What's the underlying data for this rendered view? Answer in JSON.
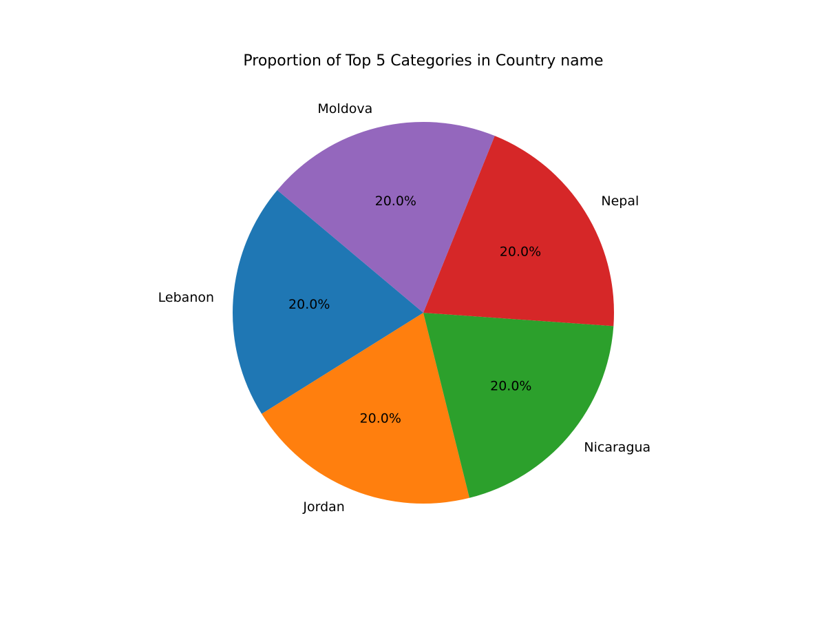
{
  "chart_data": {
    "type": "pie",
    "title": "Proportion of Top 5 Categories in Country name",
    "start_angle_deg": 140,
    "direction": "counterclockwise",
    "slices": [
      {
        "label": "Lebanon",
        "value": 20.0,
        "pct_label": "20.0%",
        "color": "#1f77b4"
      },
      {
        "label": "Jordan",
        "value": 20.0,
        "pct_label": "20.0%",
        "color": "#ff7f0e"
      },
      {
        "label": "Nicaragua",
        "value": 20.0,
        "pct_label": "20.0%",
        "color": "#2ca02c"
      },
      {
        "label": "Nepal",
        "value": 20.0,
        "pct_label": "20.0%",
        "color": "#d62728"
      },
      {
        "label": "Moldova",
        "value": 20.0,
        "pct_label": "20.0%",
        "color": "#9467bd"
      }
    ]
  }
}
